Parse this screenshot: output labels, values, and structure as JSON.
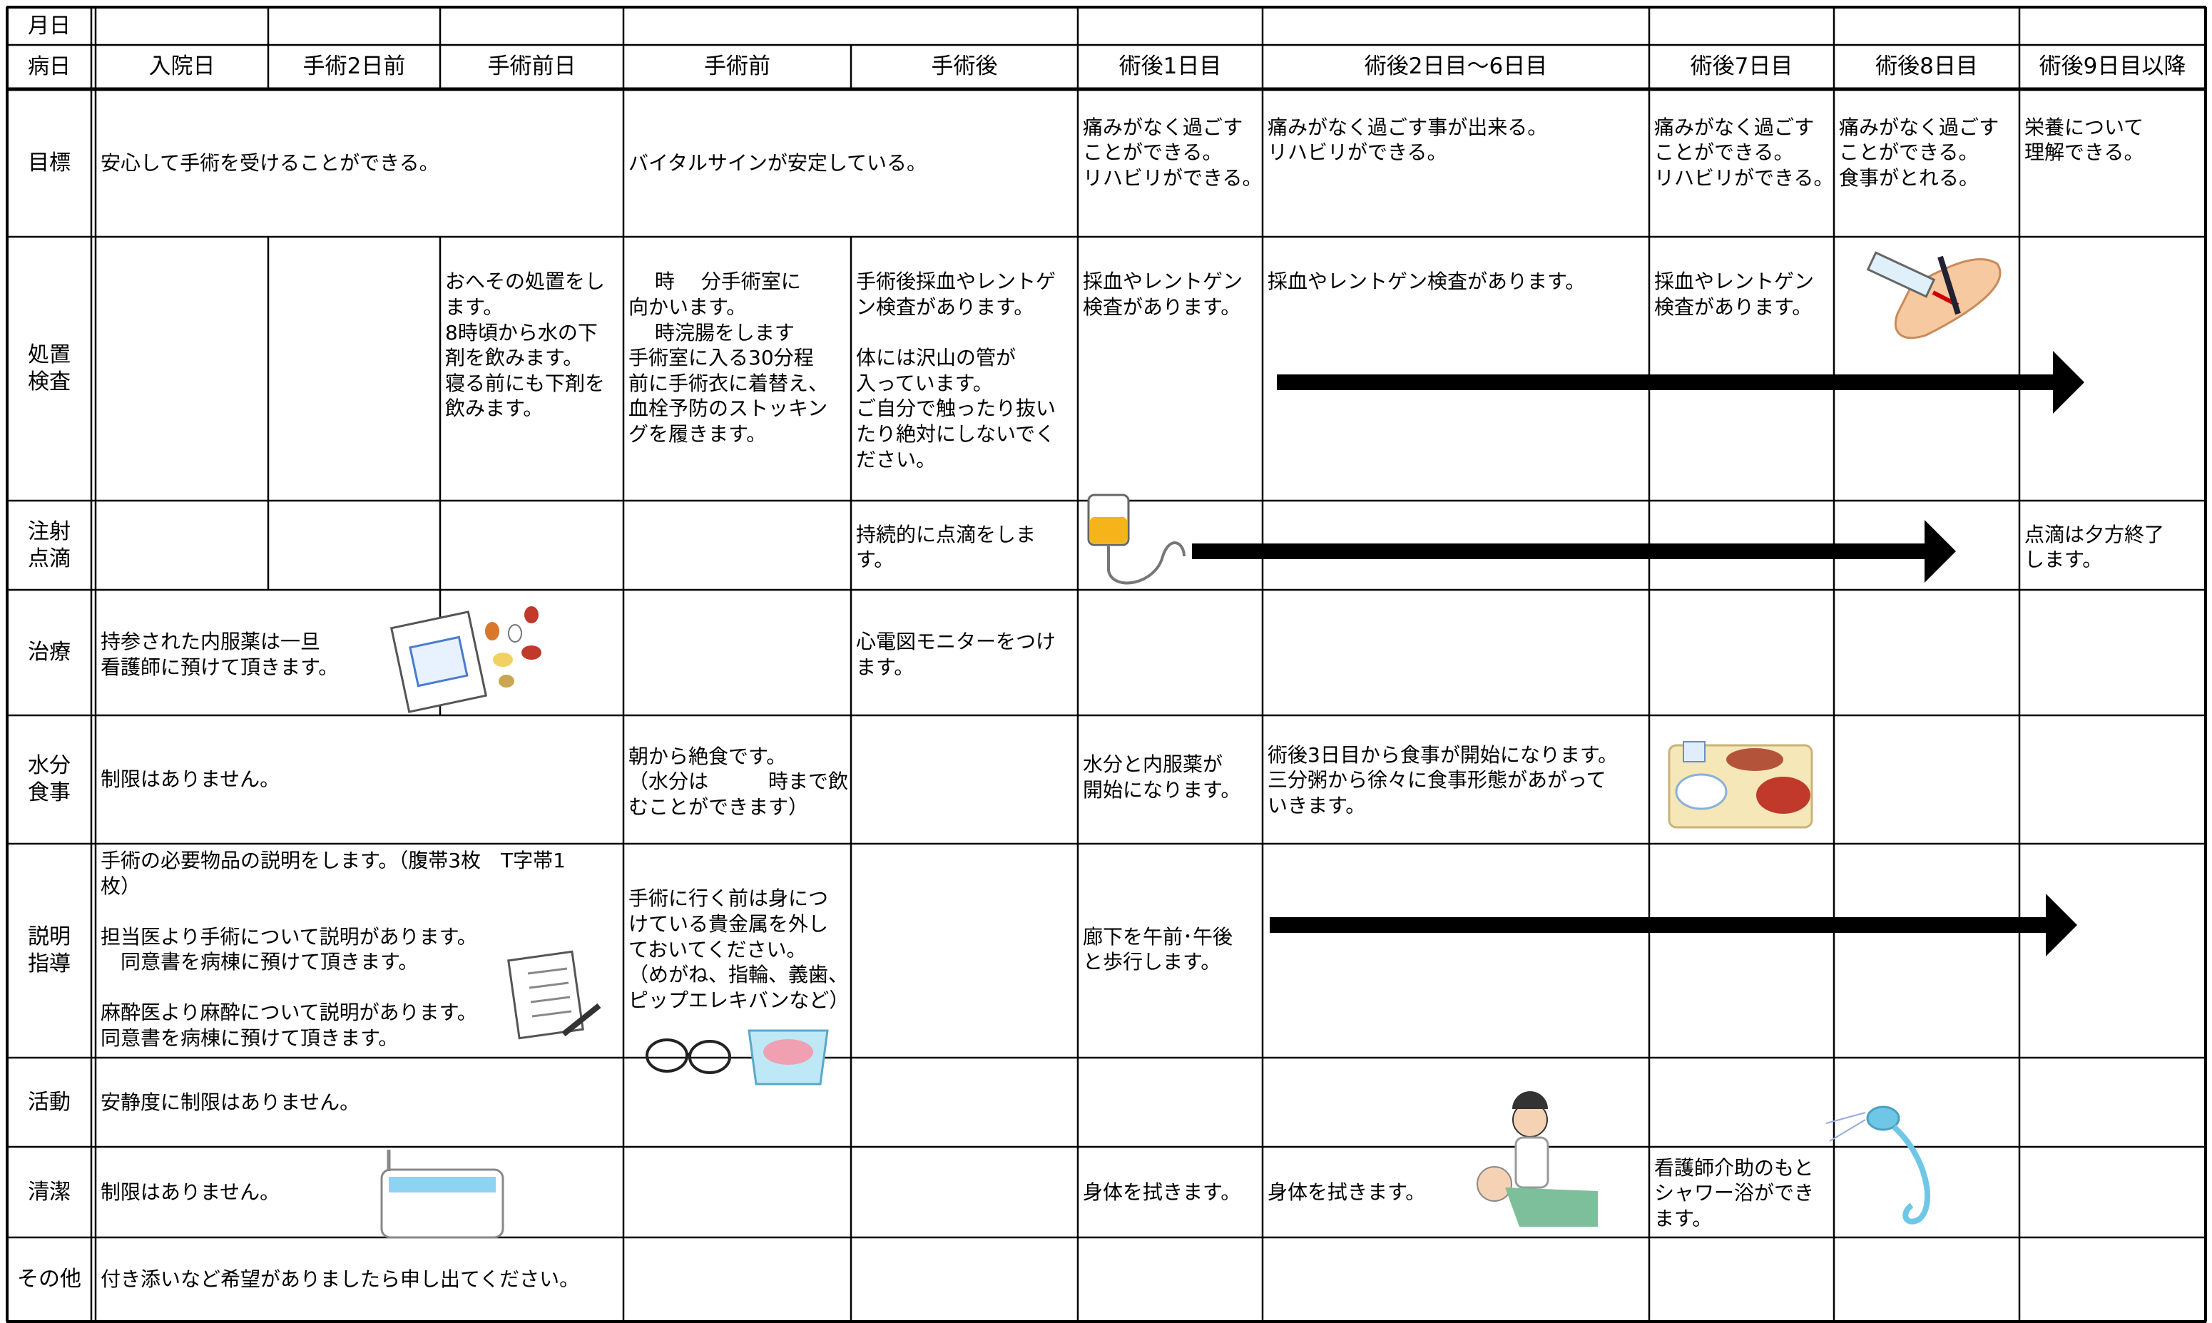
{
  "rows": [
    {
      "label": "月日"
    },
    {
      "label": "病日",
      "cells": [
        "入院日",
        "手術2日前",
        "手術前日",
        "手術前",
        "手術後",
        "術後1日目",
        "術後2日目～6日目",
        "術後7日目",
        "術後8日目",
        "術後9日目以降"
      ]
    },
    {
      "label": "目標",
      "cells": [
        "安心して手術を受けることができる。",
        "バイタルサインが安定している。",
        "痛みがなく過ごす\nことができる。\nリハビリができる。",
        "痛みがなく過ごす事が出来る。\nリハビリができる。",
        "痛みがなく過ごす\nことができる。\nリハビリができる。",
        "痛みがなく過ごす\nことができる。\n食事がとれる。",
        "栄養について\n理解できる。"
      ]
    },
    {
      "label": "処置\n検査",
      "cells": [
        "おへその処置をし\nます。\n8時頃から水の下\n剤を飲みます。\n寝る前にも下剤を\n飲みます。",
        "　 時　 分手術室に\n向かいます。\n　 時浣腸をします\n手術室に入る30分程\n前に手術衣に着替え、\n血栓予防のストッキン\nグを履きます。",
        "手術後採血やレントゲ\nン検査があります。\n\n体には沢山の管が\n入っています。\nご自分で触ったり抜い\nたり絶対にしないでく\nださい。",
        "採血やレントゲン\n検査があります。",
        "採血やレントゲン検査があります。",
        "採血やレントゲン\n検査があります。"
      ]
    },
    {
      "label": "注射\n点滴",
      "cells": [
        "持続的に点滴をしま\nす。",
        "点滴は夕方終了\nします。"
      ]
    },
    {
      "label": "治療",
      "cells": [
        "持参された内服薬は一旦\n看護師に預けて頂きます。",
        "心電図モニターをつけ\nます。"
      ]
    },
    {
      "label": "水分\n食事",
      "cells": [
        "制限はありません。",
        "朝から絶食です。\n（水分は　　　時まで飲\nむことができます）",
        "水分と内服薬が\n開始になります。",
        "術後3日目から食事が開始になります。\n三分粥から徐々に食事形態があがって\nいきます。"
      ]
    },
    {
      "label": "説明\n指導",
      "cells": [
        "手術の必要物品の説明をします。（腹帯3枚　T字帯1\n枚）\n\n担当医より手術について説明があります。\n　同意書を病棟に預けて頂きます。\n\n麻酔医より麻酔について説明があります。\n同意書を病棟に預けて頂きます。",
        "手術に行く前は身につ\nけている貴金属を外し\nておいてください。\n（めがね、指輪、義歯、\nピップエレキバンなど）",
        "廊下を午前･午後\nと歩行します。"
      ]
    },
    {
      "label": "活動",
      "cells": [
        "安静度に制限はありません。"
      ]
    },
    {
      "label": "清潔",
      "cells": [
        "制限はありません。",
        "身体を拭きます。",
        "身体を拭きます。",
        "看護師介助のもと\nシャワー浴ができ\nます。"
      ]
    },
    {
      "label": "その他",
      "cells": [
        "付き添いなど希望がありましたら申し出てください。"
      ]
    }
  ]
}
